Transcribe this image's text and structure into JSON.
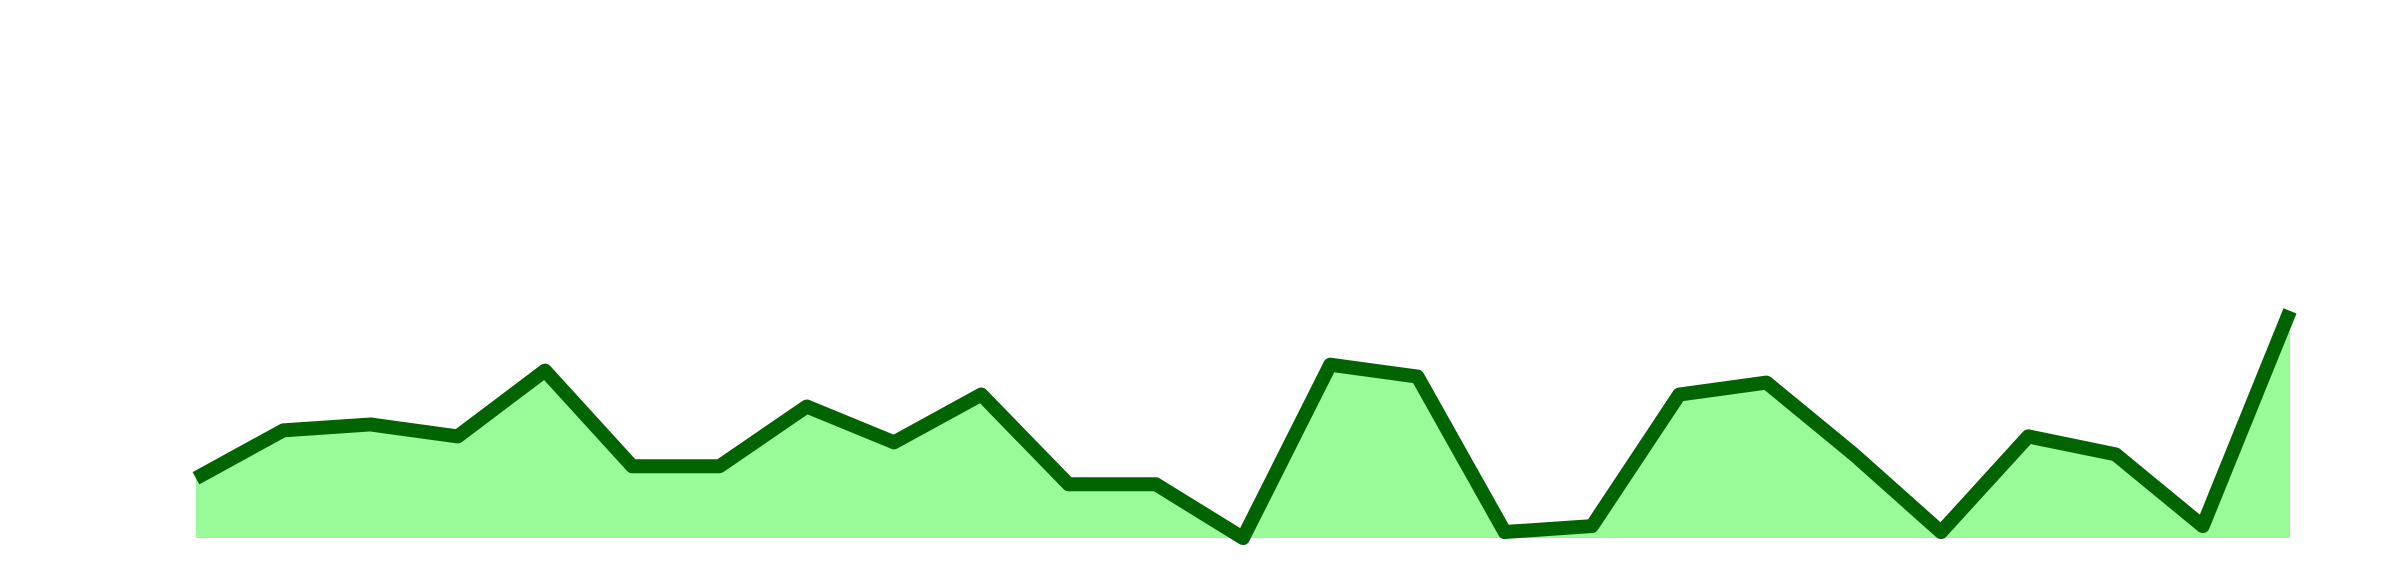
{
  "chart_data": {
    "type": "area",
    "title": "",
    "xlabel": "",
    "ylabel": "",
    "grid": false,
    "legend": "none",
    "x": [
      0,
      1,
      2,
      3,
      4,
      5,
      6,
      7,
      8,
      9,
      10,
      11,
      12,
      13,
      14,
      15,
      16,
      17,
      18,
      19,
      20,
      21,
      22,
      23,
      24
    ],
    "series": [
      {
        "values": [
          5.0,
          9.0,
          9.5,
          8.5,
          14.0,
          6.0,
          6.0,
          11.0,
          8.0,
          12.0,
          4.5,
          4.5,
          0.0,
          14.5,
          13.5,
          0.5,
          1.0,
          12.0,
          13.0,
          7.0,
          0.5,
          8.5,
          7.0,
          1.0,
          19.0
        ],
        "line_color": "#006400",
        "fill_color": "#98FB98"
      }
    ],
    "ylim": [
      -0.5,
      45
    ]
  }
}
